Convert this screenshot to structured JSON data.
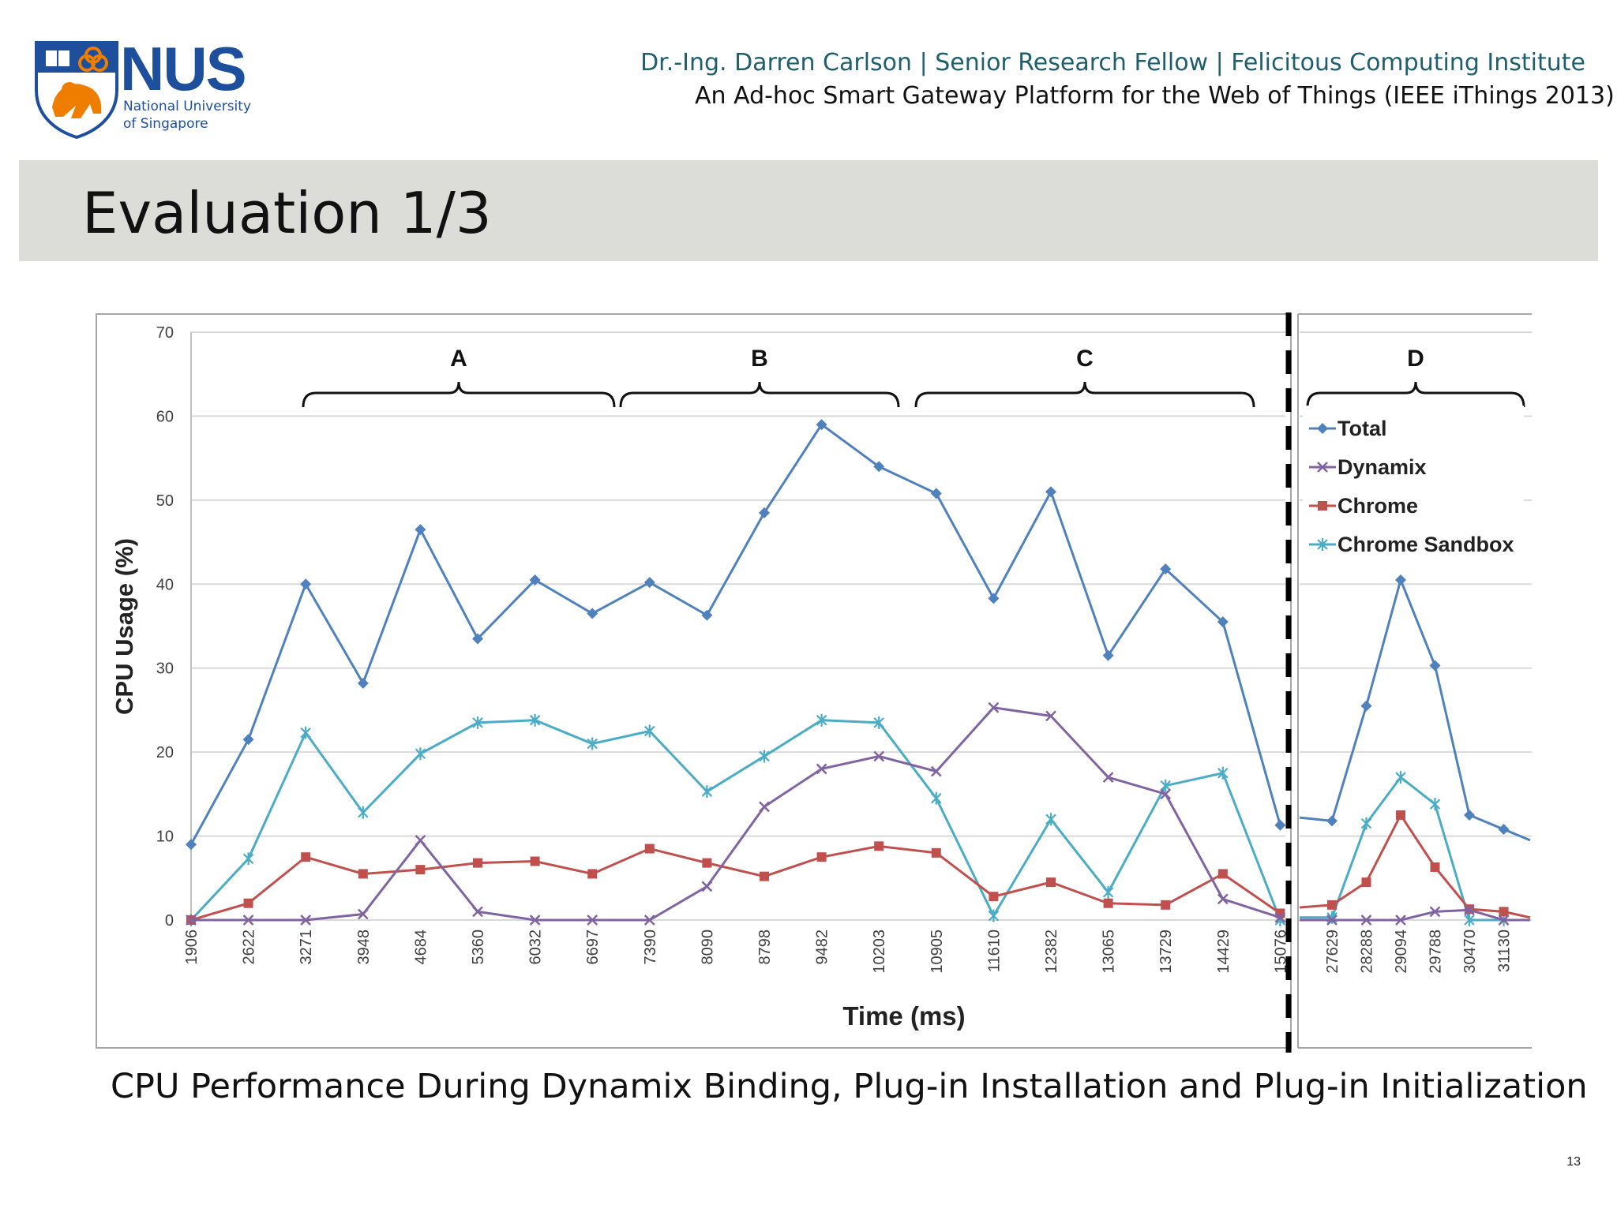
{
  "logo": {
    "word": "NUS",
    "line1": "National University",
    "line2": "of Singapore"
  },
  "header": {
    "author_line": "Dr.-Ing. Darren Carlson | Senior Research Fellow | Felicitous Computing Institute",
    "paper_line": "An Ad-hoc Smart Gateway Platform  for the Web of Things (IEEE iThings 2013)"
  },
  "slide": {
    "title": "Evaluation 1/3",
    "caption": "CPU Performance During Dynamix Binding, Plug-in Installation and Plug-in Initialization",
    "page_number": "13"
  },
  "colors": {
    "total": "#4f81bd",
    "dynamix": "#8064a2",
    "chrome": "#c0504d",
    "sandbox": "#4bacc6",
    "band": "#dcdcd9",
    "nus_blue": "#1d4f9c",
    "nus_orange": "#ef7d00"
  },
  "chart_data": {
    "type": "line",
    "xlabel": "Time (ms)",
    "ylabel": "CPU Usage (%)",
    "ylim": [
      0,
      70
    ],
    "yticks": [
      "0",
      "10",
      "20",
      "30",
      "40",
      "50",
      "60",
      "70"
    ],
    "grid": true,
    "legend_position": "right",
    "main_categories": [
      "1906",
      "2622",
      "3271",
      "3948",
      "4684",
      "5360",
      "6032",
      "6697",
      "7390",
      "8090",
      "8798",
      "9482",
      "10203",
      "10905",
      "11610",
      "12382",
      "13065",
      "13729",
      "14429",
      "15076"
    ],
    "inset_categories": [
      "27629",
      "28288",
      "29094",
      "29788",
      "30470",
      "31130"
    ],
    "brackets": [
      {
        "label": "A",
        "from": 2,
        "to": 7.5
      },
      {
        "label": "B",
        "from": 7.5,
        "to": 12.4
      },
      {
        "label": "C",
        "from": 12.7,
        "to": 18.6
      }
    ],
    "inset_bracket": {
      "label": "D"
    },
    "series": [
      {
        "name": "Total",
        "key": "total",
        "marker": "diamond",
        "main": [
          9,
          21.5,
          40,
          28.2,
          46.5,
          33.5,
          40.5,
          36.5,
          40.2,
          36.3,
          48.5,
          59,
          54,
          50.8,
          38.3,
          51,
          31.5,
          41.8,
          35.5,
          11.3
        ],
        "inset_lead": 12.2,
        "inset": [
          11.8,
          25.5,
          40.5,
          30.3,
          12.5,
          10.8
        ],
        "inset_tail": 9.5
      },
      {
        "name": "Dynamix",
        "key": "dynamix",
        "marker": "x",
        "main": [
          0,
          0,
          0,
          0.7,
          9.5,
          1,
          0,
          0,
          0,
          4,
          13.5,
          18,
          19.5,
          17.7,
          25.3,
          24.3,
          17,
          15,
          2.5,
          0.3
        ],
        "inset_lead": 0,
        "inset": [
          0,
          0,
          0,
          1,
          1.2,
          0
        ],
        "inset_tail": 0
      },
      {
        "name": "Chrome",
        "key": "chrome",
        "marker": "square",
        "main": [
          0,
          2,
          7.5,
          5.5,
          6,
          6.8,
          7,
          5.5,
          8.5,
          6.8,
          5.2,
          7.5,
          8.8,
          8,
          2.8,
          4.5,
          2,
          1.8,
          5.5,
          0.8
        ],
        "inset_lead": 1.5,
        "inset": [
          1.8,
          4.5,
          12.5,
          6.3,
          1.3,
          1
        ],
        "inset_tail": 0.3
      },
      {
        "name": "Chrome Sandbox",
        "key": "sandbox",
        "marker": "star",
        "main": [
          0,
          7.3,
          22.3,
          12.8,
          19.8,
          23.5,
          23.8,
          21,
          22.5,
          15.3,
          19.5,
          23.8,
          23.5,
          14.5,
          0.5,
          12,
          3.3,
          16,
          17.5,
          0
        ],
        "inset_lead": 0.3,
        "inset": [
          0.3,
          11.5,
          17,
          13.8,
          0,
          0
        ],
        "inset_tail": 0
      }
    ]
  }
}
